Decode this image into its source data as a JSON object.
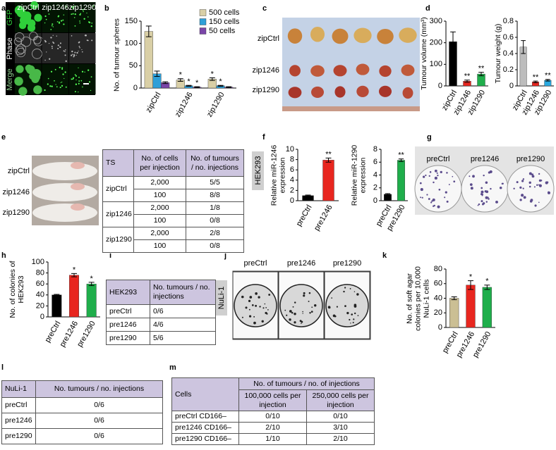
{
  "panel_labels": [
    "a",
    "b",
    "c",
    "d",
    "e",
    "f",
    "g",
    "h",
    "i",
    "j",
    "k",
    "l",
    "m"
  ],
  "images": {
    "a": {
      "column_labels": [
        "zipCtrl",
        "zip1246",
        "zip1290"
      ],
      "row_labels": [
        "GFP",
        "Phase",
        "Merge"
      ]
    },
    "c": {
      "labels": [
        "zipCtrl",
        "zip1246",
        "zip1290"
      ]
    },
    "e": {
      "labels": [
        "zipCtrl",
        "zip1246",
        "zip1290"
      ]
    },
    "g": {
      "labels": [
        "preCtrl",
        "pre1246",
        "pre1290"
      ]
    },
    "j": {
      "labels": [
        "preCtrl",
        "pre1246",
        "pre1290"
      ],
      "side_label": "NuLi-1"
    }
  },
  "chart_data": [
    {
      "type": "bar",
      "y_label": "No. of tumour spheres",
      "categories": [
        "zipCtrl",
        "zip1246",
        "zip1290"
      ],
      "series": [
        {
          "name": "500 cells",
          "color": "#d9cfa6",
          "values": [
            127,
            18,
            20
          ],
          "errors": [
            12,
            3,
            3
          ],
          "annotations": [
            null,
            "*",
            "*"
          ]
        },
        {
          "name": "150 cells",
          "color": "#2e9fd8",
          "values": [
            32,
            5,
            5
          ],
          "errors": [
            6,
            1,
            1
          ],
          "annotations": [
            null,
            "*",
            "*"
          ]
        },
        {
          "name": "50 cells",
          "color": "#7a45a8",
          "values": [
            12,
            2,
            2
          ],
          "errors": [
            2,
            1,
            1
          ],
          "annotations": [
            null,
            "*",
            null
          ]
        }
      ],
      "ylim": [
        0,
        150
      ],
      "yticks": [
        0,
        50,
        100,
        150
      ],
      "legend": "upper right"
    },
    {
      "type": "bar",
      "y_label": "Tumour volume (mm³)",
      "categories": [
        "zipCtrl",
        "zip1246",
        "zip1290"
      ],
      "values": [
        205,
        22,
        55
      ],
      "errors": [
        45,
        5,
        8
      ],
      "colors": [
        "#000000",
        "#e8261f",
        "#1fae4b"
      ],
      "annotations": [
        null,
        "**",
        "**"
      ],
      "ylim": [
        0,
        300
      ],
      "yticks": [
        0,
        100,
        200,
        300
      ]
    },
    {
      "type": "bar",
      "y_label": "Tumour weight (g)",
      "categories": [
        "zipCtrl",
        "zip1246",
        "zip1290"
      ],
      "values": [
        0.48,
        0.05,
        0.07
      ],
      "errors": [
        0.08,
        0.01,
        0.01
      ],
      "colors": [
        "#bdbdbd",
        "#e8261f",
        "#29a9e0"
      ],
      "annotations": [
        null,
        "**",
        "**"
      ],
      "ylim": [
        0,
        0.8
      ],
      "yticks": [
        0,
        0.2,
        0.4,
        0.6,
        0.8
      ]
    },
    {
      "type": "bar",
      "side_label": "HEK293",
      "y_label": "Relative miR-1246 expression",
      "categories": [
        "preCtrl",
        "pre1246"
      ],
      "values": [
        1,
        7.9
      ],
      "errors": [
        0.1,
        0.4
      ],
      "colors": [
        "#000000",
        "#e8261f"
      ],
      "annotations": [
        null,
        "**"
      ],
      "ylim": [
        0,
        10
      ],
      "yticks": [
        0,
        2,
        4,
        6,
        8,
        10
      ]
    },
    {
      "type": "bar",
      "y_label": "Relative miR-1290 expression",
      "categories": [
        "preCtrl",
        "pre1290"
      ],
      "values": [
        1,
        6.3
      ],
      "errors": [
        0.1,
        0.2
      ],
      "colors": [
        "#000000",
        "#1fae4b"
      ],
      "annotations": [
        null,
        "**"
      ],
      "ylim": [
        0,
        8
      ],
      "yticks": [
        0,
        2,
        4,
        6,
        8
      ]
    },
    {
      "type": "bar",
      "y_label": "No. of colonies of HEK293",
      "categories": [
        "preCtrl",
        "pre1246",
        "pre1290"
      ],
      "values": [
        40,
        76,
        60
      ],
      "errors": [
        1,
        3,
        3
      ],
      "colors": [
        "#000000",
        "#e8261f",
        "#1fae4b"
      ],
      "annotations": [
        null,
        "*",
        "*"
      ],
      "ylim": [
        0,
        100
      ],
      "yticks": [
        0,
        20,
        40,
        60,
        80,
        100
      ]
    },
    {
      "type": "bar",
      "y_label": "No. of soft agar colonies per 10,000 NuLi-1 cells",
      "categories": [
        "preCtrl",
        "pre1246",
        "pre1290"
      ],
      "values": [
        40,
        58,
        55
      ],
      "errors": [
        2,
        6,
        3
      ],
      "colors": [
        "#cbbf94",
        "#e8261f",
        "#1fae4b"
      ],
      "annotations": [
        null,
        "*",
        "*"
      ],
      "ylim": [
        0,
        80
      ],
      "yticks": [
        0,
        20,
        40,
        60,
        80
      ]
    }
  ],
  "tables": {
    "e": {
      "header": [
        "TS",
        "No. of cells per injection",
        "No. of tumours / no. injections"
      ],
      "groups": [
        {
          "name": "zipCtrl",
          "rows": [
            [
              "2,000",
              "5/5"
            ],
            [
              "100",
              "8/8"
            ]
          ]
        },
        {
          "name": "zip1246",
          "rows": [
            [
              "2,000",
              "1/8"
            ],
            [
              "100",
              "0/8"
            ]
          ]
        },
        {
          "name": "zip1290",
          "rows": [
            [
              "2,000",
              "2/8"
            ],
            [
              "100",
              "0/8"
            ]
          ]
        }
      ]
    },
    "i": {
      "header": [
        "HEK293",
        "No. tumours / no. injections"
      ],
      "rows": [
        [
          "preCtrl",
          "0/6"
        ],
        [
          "pre1246",
          "4/6"
        ],
        [
          "pre1290",
          "5/6"
        ]
      ]
    },
    "l": {
      "header": [
        "NuLi-1",
        "No. tumours / no. injections"
      ],
      "rows": [
        [
          "preCtrl",
          "0/6"
        ],
        [
          "pre1246",
          "0/6"
        ],
        [
          "pre1290",
          "0/6"
        ]
      ]
    },
    "m": {
      "header": "Cells",
      "group_header": "No. of tumours / no. of injections",
      "subheaders": [
        "100,000 cells per injection",
        "250,000 cells per injection"
      ],
      "rows": [
        [
          "preCtrl CD166–",
          "0/10",
          "0/10"
        ],
        [
          "pre1246 CD166–",
          "2/10",
          "3/10"
        ],
        [
          "pre1290 CD166–",
          "1/10",
          "2/10"
        ]
      ]
    }
  }
}
